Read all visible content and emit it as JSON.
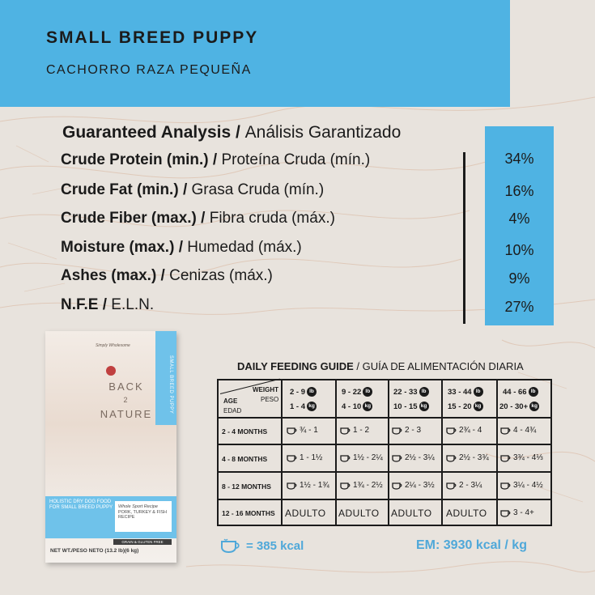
{
  "header": {
    "title": "SMALL BREED PUPPY",
    "subtitle": "CACHORRO RAZA PEQUEÑA",
    "band_color": "#4fb3e3"
  },
  "guaranteed_analysis": {
    "title_en": "Guaranteed Analysis",
    "title_sep": " / ",
    "title_es": "Análisis Garantizado",
    "rows": [
      {
        "en": "Crude Protein  (min.)",
        "es": "Proteína Cruda (mín.)",
        "value": "34%"
      },
      {
        "en": "Crude Fat (min.) ",
        "es": "Grasa Cruda (mín.)",
        "value": "16%"
      },
      {
        "en": "Crude Fiber (max.)",
        "es": "Fibra cruda (máx.)",
        "value": "4%"
      },
      {
        "en": "Moisture (max.)",
        "es": "Humedad (máx.)",
        "value": "10%"
      },
      {
        "en": "Ashes  (max.)",
        "es": "Cenizas (máx.)",
        "value": "9%"
      },
      {
        "en": "N.F.E",
        "es": "E.L.N.",
        "value": "27%"
      }
    ]
  },
  "product_bag": {
    "tagline": "Simply Wholesome",
    "brand_line1": "BACK",
    "brand_line2": "2",
    "brand_line3": "NATURE",
    "stripe_text": "SMALL BREED PUPPY",
    "panel_text": "HOLISTIC DRY DOG FOOD FOR SMALL BREED PUPPY",
    "recipe_title": "Whole Sport Recipe",
    "recipe_text": "PORK, TURKEY & FISH RECIPE",
    "badge": "GRAIN & GLUTEN FREE",
    "net_weight": "NET WT./PESO NETO (13.2 lb)(6 kg)"
  },
  "feeding_guide": {
    "title_en": "DAILY FEEDING GUIDE",
    "title_sep": " / ",
    "title_es": "GUÍA DE ALIMENTACIÓN DIARIA",
    "header_weight": "WEIGHT",
    "header_peso": "PESO",
    "header_age": "AGE",
    "header_edad": "EDAD",
    "unit_lb": "lb",
    "unit_kg": "kg",
    "weight_columns": [
      {
        "lb": "2 - 9",
        "kg": "1 - 4"
      },
      {
        "lb": "9 - 22",
        "kg": "4 - 10"
      },
      {
        "lb": "22 - 33",
        "kg": "10 - 15"
      },
      {
        "lb": "33 - 44",
        "kg": "15 - 20"
      },
      {
        "lb": "44 - 66",
        "kg": "20 - 30+"
      }
    ],
    "rows": [
      {
        "age": "2 - 4 MONTHS",
        "cells": [
          "¾ - 1",
          "1 - 2",
          "2 - 3",
          "2¾ - 4",
          "4 - 4¾"
        ]
      },
      {
        "age": "4 - 8 MONTHS",
        "cells": [
          "1 - 1½",
          "1½ - 2¼",
          "2½ - 3¼",
          "2½ - 3¾",
          "3¾ - 4⅓"
        ]
      },
      {
        "age": "8 - 12 MONTHS",
        "cells": [
          "1½ - 1¾",
          "1¾ - 2½",
          "2¼ - 3½",
          "2 - 3¼",
          "3¼ - 4½"
        ]
      },
      {
        "age": "12 - 16 MONTHS",
        "cells": [
          "ADULTO",
          "ADULTO",
          "ADULTO",
          "ADULTO",
          "3 - 4+"
        ]
      }
    ],
    "legend_text": "= 385 kcal",
    "em_text": "EM: 3930 kcal / kg",
    "accent_color": "#4fa8d9"
  }
}
